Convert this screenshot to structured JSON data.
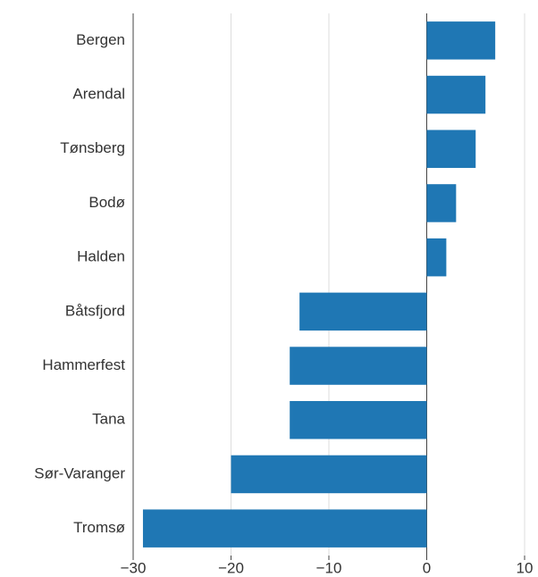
{
  "chart_data": {
    "type": "barh",
    "categories": [
      "Bergen",
      "Arendal",
      "Tønsberg",
      "Bodø",
      "Halden",
      "Båtsfjord",
      "Hammerfest",
      "Tana",
      "Sør-Varanger",
      "Tromsø"
    ],
    "values": [
      7,
      6,
      5,
      3,
      2,
      -13,
      -14,
      -14,
      -20,
      -29
    ],
    "color": "#1f77b4",
    "xlim": [
      -30,
      10
    ],
    "xticks": [
      {
        "value": -30,
        "label": "−30"
      },
      {
        "value": -20,
        "label": "−20"
      },
      {
        "value": -10,
        "label": "−10"
      },
      0,
      10
    ],
    "grid": true
  }
}
